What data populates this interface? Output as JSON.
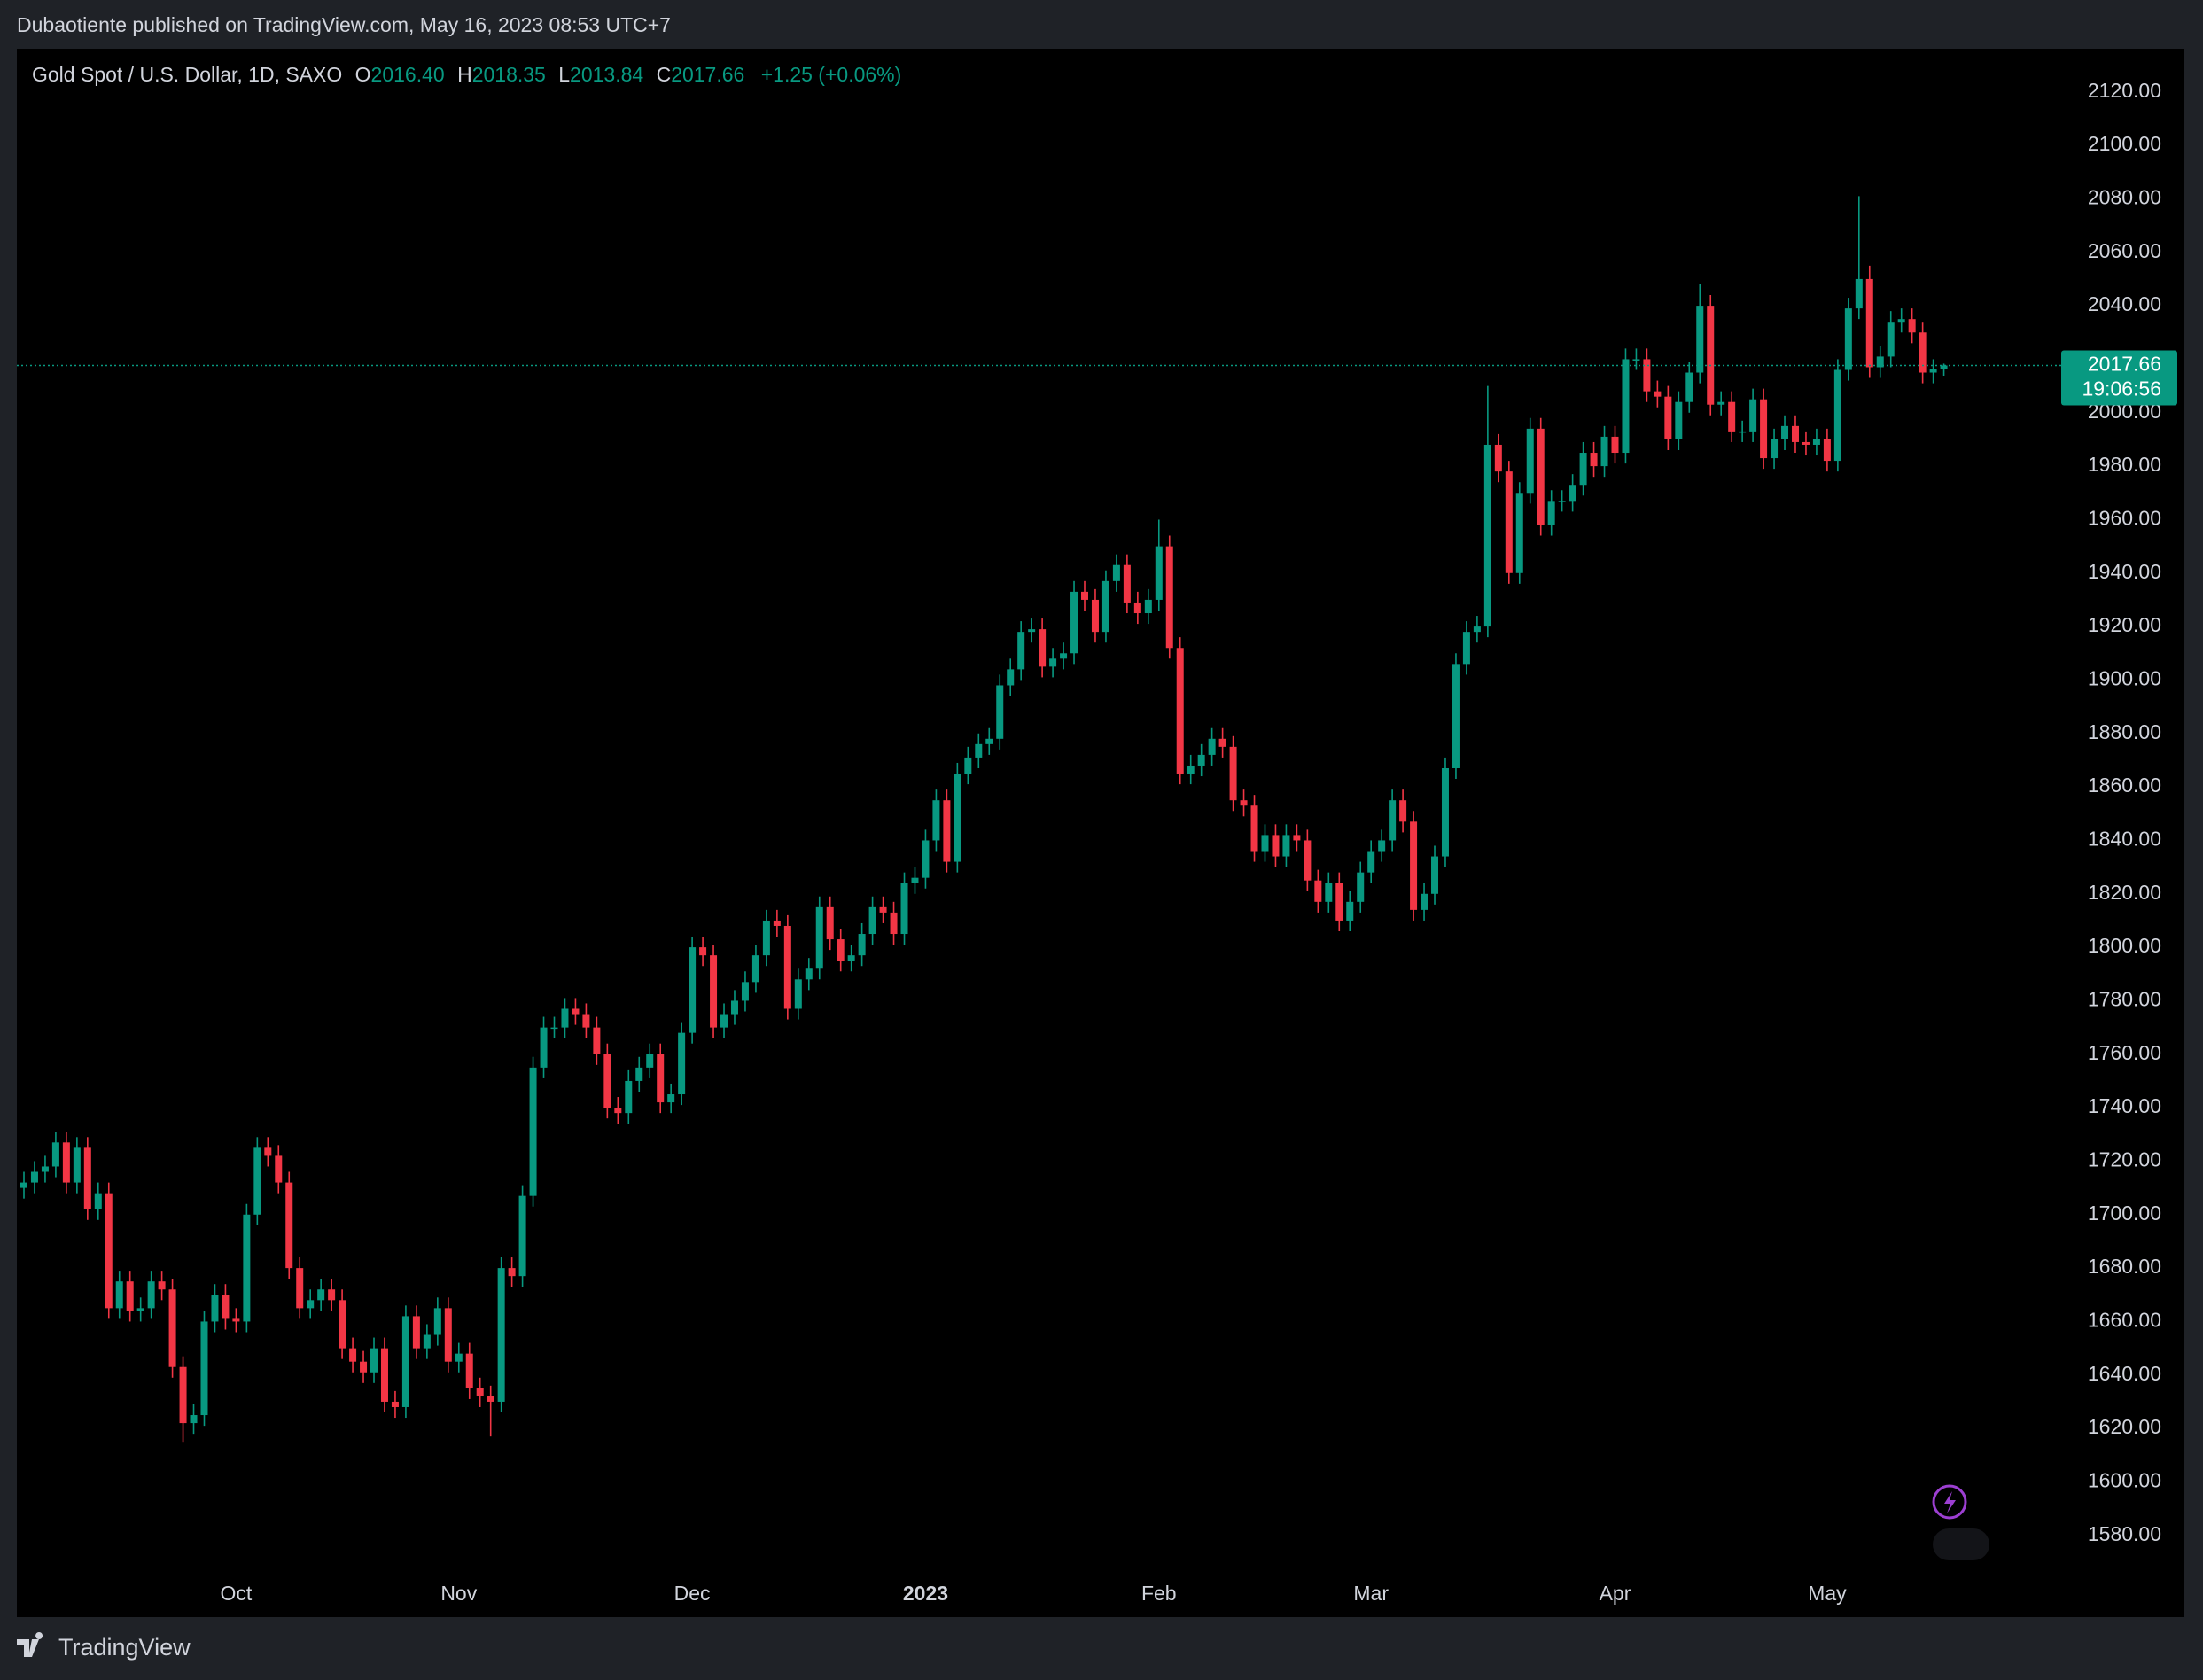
{
  "page": {
    "publisher_line": "Dubaotiente published on TradingView.com, May 16, 2023 08:53 UTC+7",
    "brand": "TradingView"
  },
  "chart_data": {
    "type": "candlestick",
    "title": "Gold Spot / U.S. Dollar, 1D, SAXO",
    "legend": {
      "open_label": "O",
      "open": "2016.40",
      "high_label": "H",
      "high": "2018.35",
      "low_label": "L",
      "low": "2013.84",
      "close_label": "C",
      "close": "2017.66",
      "change": "+1.25 (+0.06%)"
    },
    "last_price": {
      "value": 2017.66,
      "label": "2017.66",
      "countdown": "19:06:56"
    },
    "up_color": "#089981",
    "down_color": "#f23645",
    "grid": false,
    "ylim": [
      1567,
      2136
    ],
    "yticks": [
      {
        "value": 1580,
        "label": "1580.00"
      },
      {
        "value": 1600,
        "label": "1600.00"
      },
      {
        "value": 1620,
        "label": "1620.00"
      },
      {
        "value": 1640,
        "label": "1640.00"
      },
      {
        "value": 1660,
        "label": "1660.00"
      },
      {
        "value": 1680,
        "label": "1680.00"
      },
      {
        "value": 1700,
        "label": "1700.00"
      },
      {
        "value": 1720,
        "label": "1720.00"
      },
      {
        "value": 1740,
        "label": "1740.00"
      },
      {
        "value": 1760,
        "label": "1760.00"
      },
      {
        "value": 1780,
        "label": "1780.00"
      },
      {
        "value": 1800,
        "label": "1800.00"
      },
      {
        "value": 1820,
        "label": "1820.00"
      },
      {
        "value": 1840,
        "label": "1840.00"
      },
      {
        "value": 1860,
        "label": "1860.00"
      },
      {
        "value": 1880,
        "label": "1880.00"
      },
      {
        "value": 1900,
        "label": "1900.00"
      },
      {
        "value": 1920,
        "label": "1920.00"
      },
      {
        "value": 1940,
        "label": "1940.00"
      },
      {
        "value": 1960,
        "label": "1960.00"
      },
      {
        "value": 1980,
        "label": "1980.00"
      },
      {
        "value": 2000,
        "label": "2000.00"
      },
      {
        "value": 2020,
        "label": "2020.00"
      },
      {
        "value": 2040,
        "label": "2040.00"
      },
      {
        "value": 2060,
        "label": "2060.00"
      },
      {
        "value": 2080,
        "label": "2080.00"
      },
      {
        "value": 2100,
        "label": "2100.00"
      },
      {
        "value": 2120,
        "label": "2120.00"
      }
    ],
    "categories": [
      null,
      null,
      null,
      null,
      null,
      null,
      null,
      null,
      null,
      null,
      null,
      null,
      null,
      null,
      null,
      null,
      null,
      null,
      null,
      null,
      "Oct",
      null,
      null,
      null,
      null,
      null,
      null,
      null,
      null,
      null,
      null,
      null,
      null,
      null,
      null,
      null,
      null,
      null,
      null,
      null,
      null,
      "Nov",
      null,
      null,
      null,
      null,
      null,
      null,
      null,
      null,
      null,
      null,
      null,
      null,
      null,
      null,
      null,
      null,
      null,
      null,
      null,
      null,
      null,
      "Dec",
      null,
      null,
      null,
      null,
      null,
      null,
      null,
      null,
      null,
      null,
      null,
      null,
      null,
      null,
      null,
      null,
      null,
      null,
      null,
      null,
      null,
      "2023",
      null,
      null,
      null,
      null,
      null,
      null,
      null,
      null,
      null,
      null,
      null,
      null,
      null,
      null,
      null,
      null,
      null,
      null,
      null,
      null,
      null,
      "Feb",
      null,
      null,
      null,
      null,
      null,
      null,
      null,
      null,
      null,
      null,
      null,
      null,
      null,
      null,
      null,
      null,
      null,
      null,
      null,
      "Mar",
      null,
      null,
      null,
      null,
      null,
      null,
      null,
      null,
      null,
      null,
      null,
      null,
      null,
      null,
      null,
      null,
      null,
      null,
      null,
      null,
      null,
      null,
      "Apr",
      null,
      null,
      null,
      null,
      null,
      null,
      null,
      null,
      null,
      null,
      null,
      null,
      null,
      null,
      null,
      null,
      null,
      null,
      null,
      "May",
      null,
      null,
      null,
      null,
      null,
      null,
      null,
      null,
      null,
      null,
      null
    ],
    "open": [
      1710,
      1712,
      1716,
      1718,
      1727,
      1712,
      1725,
      1702,
      1708,
      1665,
      1675,
      1664,
      1665,
      1675,
      1672,
      1643,
      1622,
      1625,
      1660,
      1670,
      1661,
      1660,
      1700,
      1725,
      1722,
      1712,
      1680,
      1665,
      1668,
      1672,
      1668,
      1650,
      1645,
      1641,
      1650,
      1630,
      1628,
      1662,
      1650,
      1655,
      1665,
      1645,
      1648,
      1635,
      1632,
      1630,
      1680,
      1677,
      1707,
      1755,
      1770,
      1770,
      1777,
      1775,
      1770,
      1760,
      1740,
      1738,
      1750,
      1755,
      1760,
      1742,
      1745,
      1768,
      1800,
      1797,
      1770,
      1775,
      1780,
      1787,
      1797,
      1810,
      1808,
      1777,
      1788,
      1792,
      1815,
      1803,
      1795,
      1797,
      1805,
      1815,
      1813,
      1805,
      1824,
      1826,
      1840,
      1855,
      1832,
      1865,
      1871,
      1876,
      1878,
      1898,
      1904,
      1918,
      1919,
      1905,
      1908,
      1910,
      1933,
      1930,
      1918,
      1937,
      1943,
      1929,
      1925,
      1930,
      1950,
      1912,
      1865,
      1868,
      1872,
      1878,
      1875,
      1855,
      1853,
      1836,
      1842,
      1834,
      1842,
      1840,
      1825,
      1817,
      1824,
      1810,
      1817,
      1828,
      1836,
      1840,
      1855,
      1847,
      1814,
      1820,
      1834,
      1867,
      1906,
      1918,
      1920,
      1988,
      1978,
      1940,
      1970,
      1994,
      1958,
      1967,
      1967,
      1973,
      1985,
      1980,
      1991,
      1985,
      2020,
      2020,
      2008,
      2006,
      1990,
      2004,
      2015,
      2040,
      2003,
      2004,
      1993,
      1993,
      2005,
      1983,
      1990,
      1995,
      1989,
      1988,
      1990,
      1982,
      2016,
      2039,
      2050,
      2017,
      2021,
      2034,
      2035,
      2030,
      2015,
      2016.4
    ],
    "high": [
      1716,
      1720,
      1722,
      1731,
      1731,
      1729,
      1729,
      1712,
      1712,
      1679,
      1679,
      1669,
      1679,
      1679,
      1676,
      1647,
      1629,
      1664,
      1674,
      1674,
      1665,
      1704,
      1729,
      1729,
      1726,
      1716,
      1684,
      1672,
      1676,
      1676,
      1672,
      1654,
      1649,
      1654,
      1654,
      1634,
      1666,
      1666,
      1659,
      1669,
      1669,
      1652,
      1652,
      1639,
      1636,
      1684,
      1684,
      1711,
      1759,
      1774,
      1774,
      1781,
      1781,
      1779,
      1774,
      1764,
      1744,
      1754,
      1759,
      1764,
      1764,
      1749,
      1772,
      1804,
      1804,
      1801,
      1779,
      1784,
      1791,
      1801,
      1814,
      1814,
      1812,
      1792,
      1796,
      1819,
      1819,
      1807,
      1801,
      1809,
      1819,
      1819,
      1817,
      1828,
      1830,
      1844,
      1859,
      1859,
      1869,
      1875,
      1880,
      1882,
      1902,
      1908,
      1922,
      1923,
      1923,
      1912,
      1914,
      1937,
      1937,
      1934,
      1941,
      1947,
      1947,
      1933,
      1934,
      1960,
      1954,
      1916,
      1872,
      1876,
      1882,
      1882,
      1879,
      1859,
      1857,
      1846,
      1846,
      1846,
      1846,
      1844,
      1829,
      1828,
      1828,
      1821,
      1832,
      1840,
      1844,
      1859,
      1859,
      1851,
      1824,
      1838,
      1871,
      1910,
      1922,
      1924,
      2010,
      1992,
      1982,
      1974,
      1998,
      1998,
      1971,
      1971,
      1977,
      1989,
      1989,
      1995,
      1995,
      2024,
      2024,
      2024,
      2012,
      2010,
      2008,
      2019,
      2048,
      2044,
      2008,
      2008,
      1997,
      2009,
      2009,
      1994,
      1999,
      1999,
      1993,
      1994,
      1994,
      2020,
      2043,
      2081,
      2055,
      2025,
      2038,
      2039,
      2039,
      2034,
      2020,
      2018.35
    ],
    "low": [
      1706,
      1708,
      1712,
      1714,
      1708,
      1708,
      1698,
      1698,
      1661,
      1661,
      1660,
      1660,
      1661,
      1668,
      1639,
      1615,
      1618,
      1621,
      1656,
      1657,
      1656,
      1656,
      1696,
      1718,
      1708,
      1676,
      1661,
      1661,
      1664,
      1664,
      1646,
      1641,
      1637,
      1637,
      1626,
      1624,
      1624,
      1646,
      1646,
      1651,
      1641,
      1641,
      1631,
      1628,
      1617,
      1626,
      1673,
      1673,
      1703,
      1751,
      1766,
      1766,
      1771,
      1766,
      1756,
      1736,
      1734,
      1734,
      1746,
      1751,
      1738,
      1738,
      1741,
      1764,
      1793,
      1766,
      1766,
      1771,
      1776,
      1783,
      1793,
      1804,
      1773,
      1773,
      1784,
      1788,
      1799,
      1791,
      1791,
      1793,
      1801,
      1809,
      1801,
      1801,
      1820,
      1822,
      1836,
      1828,
      1828,
      1861,
      1867,
      1872,
      1874,
      1894,
      1900,
      1914,
      1901,
      1901,
      1904,
      1906,
      1926,
      1914,
      1914,
      1933,
      1925,
      1921,
      1921,
      1926,
      1908,
      1861,
      1861,
      1864,
      1868,
      1871,
      1851,
      1849,
      1832,
      1832,
      1830,
      1830,
      1836,
      1821,
      1813,
      1813,
      1806,
      1806,
      1813,
      1824,
      1832,
      1836,
      1843,
      1810,
      1810,
      1816,
      1830,
      1863,
      1902,
      1914,
      1916,
      1974,
      1936,
      1936,
      1966,
      1954,
      1954,
      1963,
      1963,
      1969,
      1976,
      1976,
      1981,
      1981,
      2016,
      2004,
      2002,
      1986,
      1986,
      2000,
      2011,
      1999,
      1999,
      1989,
      1989,
      1989,
      1979,
      1979,
      1986,
      1985,
      1984,
      1984,
      1978,
      1978,
      2012,
      2035,
      2013,
      2013,
      2017,
      2030,
      2026,
      2011,
      2011,
      2013.84
    ],
    "close": [
      1712,
      1716,
      1718,
      1727,
      1712,
      1725,
      1702,
      1708,
      1665,
      1675,
      1664,
      1665,
      1675,
      1672,
      1643,
      1622,
      1625,
      1660,
      1670,
      1661,
      1660,
      1700,
      1725,
      1722,
      1712,
      1680,
      1665,
      1668,
      1672,
      1668,
      1650,
      1645,
      1641,
      1650,
      1630,
      1628,
      1662,
      1650,
      1655,
      1665,
      1645,
      1648,
      1635,
      1632,
      1630,
      1680,
      1677,
      1707,
      1755,
      1770,
      1770,
      1777,
      1775,
      1770,
      1760,
      1740,
      1738,
      1750,
      1755,
      1760,
      1742,
      1745,
      1768,
      1800,
      1797,
      1770,
      1775,
      1780,
      1787,
      1797,
      1810,
      1808,
      1777,
      1788,
      1792,
      1815,
      1803,
      1795,
      1797,
      1805,
      1815,
      1813,
      1805,
      1824,
      1826,
      1840,
      1855,
      1832,
      1865,
      1871,
      1876,
      1878,
      1898,
      1904,
      1918,
      1919,
      1905,
      1908,
      1910,
      1933,
      1930,
      1918,
      1937,
      1943,
      1929,
      1925,
      1930,
      1950,
      1912,
      1865,
      1868,
      1872,
      1878,
      1875,
      1855,
      1853,
      1836,
      1842,
      1834,
      1842,
      1840,
      1825,
      1817,
      1824,
      1810,
      1817,
      1828,
      1836,
      1840,
      1855,
      1847,
      1814,
      1820,
      1834,
      1867,
      1906,
      1918,
      1920,
      1988,
      1978,
      1940,
      1970,
      1994,
      1958,
      1967,
      1967,
      1973,
      1985,
      1980,
      1991,
      1985,
      2020,
      2020,
      2008,
      2006,
      1990,
      2004,
      2015,
      2040,
      2003,
      2004,
      1993,
      1993,
      2005,
      1983,
      1990,
      1995,
      1989,
      1988,
      1990,
      1982,
      2016,
      2039,
      2050,
      2017,
      2021,
      2034,
      2035,
      2030,
      2015,
      2016.4,
      2017.66
    ]
  }
}
